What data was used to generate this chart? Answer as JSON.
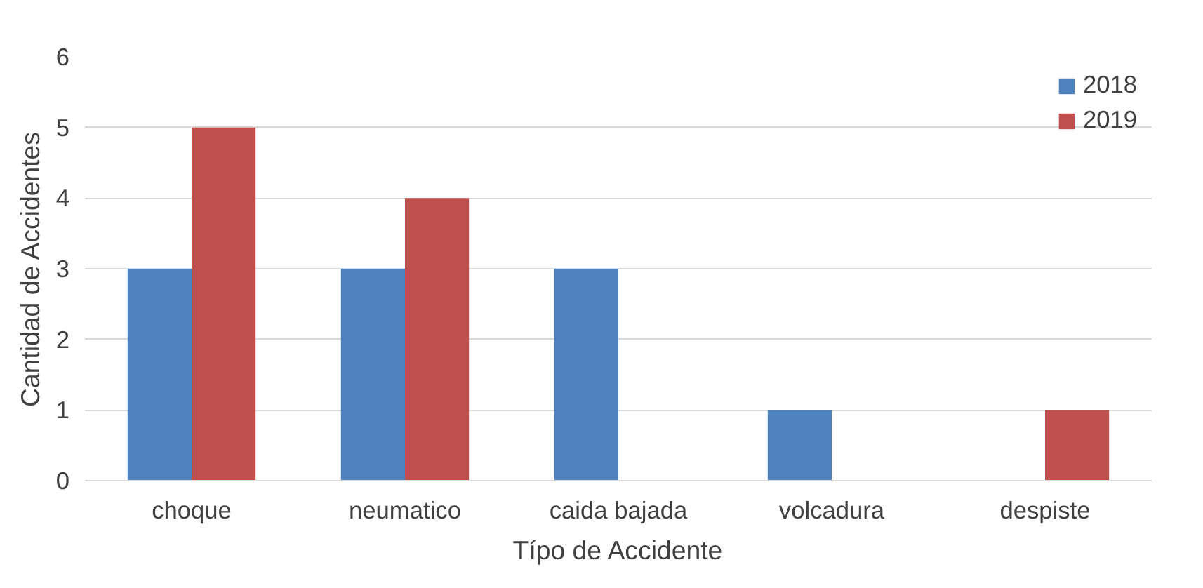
{
  "chart_data": {
    "type": "bar",
    "xlabel": "Típo de Accidente",
    "ylabel": "Cantidad de Accidentes",
    "categories": [
      "choque",
      "neumatico",
      "caida bajada",
      "volcadura",
      "despiste"
    ],
    "series": [
      {
        "name": "2018",
        "color": "#4f81bd",
        "values": [
          3,
          3,
          3,
          1,
          0
        ]
      },
      {
        "name": "2019",
        "color": "#c0504d",
        "values": [
          5,
          4,
          0,
          0,
          1
        ]
      }
    ],
    "ylim": [
      0,
      6
    ],
    "yticks": [
      0,
      1,
      2,
      3,
      4,
      5,
      6
    ],
    "grid": "y",
    "legend": "top right"
  }
}
